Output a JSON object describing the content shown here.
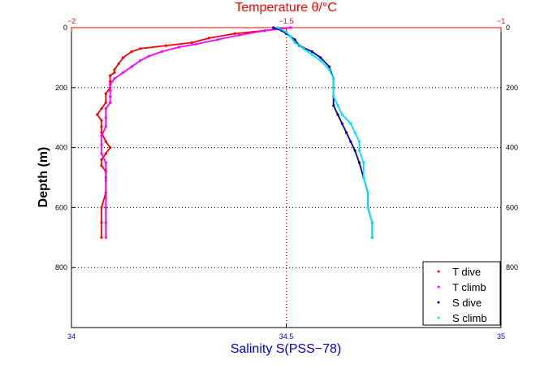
{
  "chart_data": {
    "type": "scatter",
    "top_axis_label": "Temperature θ/°C",
    "xlabel": "Salinity S(PSS−78)",
    "ylabel": "Depth (m)",
    "temperature_axis": {
      "range": [
        -2,
        -1
      ],
      "ticks": [
        "−2",
        "−1.5",
        "−1"
      ],
      "tick_values": [
        -2,
        -1.5,
        -1
      ],
      "color": "#ff0000"
    },
    "salinity_axis": {
      "range": [
        34,
        35
      ],
      "ticks": [
        "34",
        "34.5",
        "35"
      ],
      "tick_values": [
        34,
        34.5,
        35
      ],
      "color": "#0000cc"
    },
    "depth_axis": {
      "range": [
        0,
        1000
      ],
      "inverted": true,
      "ticks": [
        "0",
        "200",
        "400",
        "600",
        "800"
      ],
      "tick_values": [
        0,
        200,
        400,
        600,
        800
      ]
    },
    "grid": "dotted horizontal at depth ticks; vertical at 34.5 / −1.5",
    "legend_position": "bottom-right",
    "series": [
      {
        "name": "T dive",
        "axis": "temperature",
        "color": "#ff0000",
        "points": [
          [
            -1.49,
            0
          ],
          [
            -1.55,
            10
          ],
          [
            -1.62,
            20
          ],
          [
            -1.68,
            35
          ],
          [
            -1.72,
            50
          ],
          [
            -1.78,
            60
          ],
          [
            -1.84,
            70
          ],
          [
            -1.86,
            80
          ],
          [
            -1.88,
            100
          ],
          [
            -1.89,
            120
          ],
          [
            -1.9,
            140
          ],
          [
            -1.9,
            150
          ],
          [
            -1.91,
            160
          ],
          [
            -1.91,
            180
          ],
          [
            -1.91,
            200
          ],
          [
            -1.92,
            220
          ],
          [
            -1.92,
            250
          ],
          [
            -1.93,
            270
          ],
          [
            -1.94,
            290
          ],
          [
            -1.93,
            310
          ],
          [
            -1.93,
            330
          ],
          [
            -1.93,
            350
          ],
          [
            -1.92,
            380
          ],
          [
            -1.91,
            400
          ],
          [
            -1.92,
            420
          ],
          [
            -1.93,
            440
          ],
          [
            -1.93,
            460
          ],
          [
            -1.92,
            480
          ],
          [
            -1.92,
            500
          ],
          [
            -1.92,
            550
          ],
          [
            -1.93,
            600
          ],
          [
            -1.93,
            650
          ],
          [
            -1.93,
            700
          ]
        ]
      },
      {
        "name": "T climb",
        "axis": "temperature",
        "color": "#ff00ff",
        "points": [
          [
            -1.49,
            0
          ],
          [
            -1.55,
            10
          ],
          [
            -1.61,
            25
          ],
          [
            -1.66,
            40
          ],
          [
            -1.71,
            55
          ],
          [
            -1.75,
            65
          ],
          [
            -1.79,
            80
          ],
          [
            -1.82,
            95
          ],
          [
            -1.84,
            110
          ],
          [
            -1.86,
            130
          ],
          [
            -1.88,
            150
          ],
          [
            -1.9,
            170
          ],
          [
            -1.91,
            190
          ],
          [
            -1.91,
            210
          ],
          [
            -1.91,
            230
          ],
          [
            -1.91,
            250
          ],
          [
            -1.92,
            270
          ],
          [
            -1.92,
            300
          ],
          [
            -1.92,
            330
          ],
          [
            -1.93,
            360
          ],
          [
            -1.93,
            390
          ],
          [
            -1.93,
            420
          ],
          [
            -1.92,
            450
          ],
          [
            -1.92,
            480
          ],
          [
            -1.92,
            510
          ],
          [
            -1.92,
            550
          ],
          [
            -1.92,
            600
          ],
          [
            -1.92,
            650
          ],
          [
            -1.92,
            700
          ]
        ]
      },
      {
        "name": "S dive",
        "axis": "salinity",
        "color": "#0000aa",
        "points": [
          [
            34.47,
            0
          ],
          [
            34.49,
            10
          ],
          [
            34.5,
            20
          ],
          [
            34.52,
            40
          ],
          [
            34.53,
            60
          ],
          [
            34.56,
            80
          ],
          [
            34.58,
            100
          ],
          [
            34.6,
            130
          ],
          [
            34.61,
            170
          ],
          [
            34.61,
            200
          ],
          [
            34.61,
            230
          ],
          [
            34.61,
            260
          ],
          [
            34.62,
            290
          ],
          [
            34.63,
            320
          ],
          [
            34.64,
            350
          ],
          [
            34.65,
            380
          ],
          [
            34.66,
            410
          ],
          [
            34.67,
            450
          ],
          [
            34.68,
            500
          ],
          [
            34.69,
            550
          ],
          [
            34.69,
            600
          ],
          [
            34.7,
            650
          ],
          [
            34.7,
            700
          ]
        ]
      },
      {
        "name": "S climb",
        "axis": "salinity",
        "color": "#00e5ee",
        "points": [
          [
            34.48,
            0
          ],
          [
            34.5,
            15
          ],
          [
            34.51,
            30
          ],
          [
            34.52,
            50
          ],
          [
            34.54,
            70
          ],
          [
            34.56,
            90
          ],
          [
            34.58,
            110
          ],
          [
            34.6,
            140
          ],
          [
            34.61,
            170
          ],
          [
            34.61,
            200
          ],
          [
            34.61,
            230
          ],
          [
            34.62,
            260
          ],
          [
            34.63,
            290
          ],
          [
            34.65,
            320
          ],
          [
            34.66,
            350
          ],
          [
            34.67,
            380
          ],
          [
            34.67,
            410
          ],
          [
            34.68,
            450
          ],
          [
            34.68,
            500
          ],
          [
            34.69,
            550
          ],
          [
            34.69,
            600
          ],
          [
            34.7,
            650
          ],
          [
            34.7,
            700
          ]
        ]
      }
    ]
  }
}
